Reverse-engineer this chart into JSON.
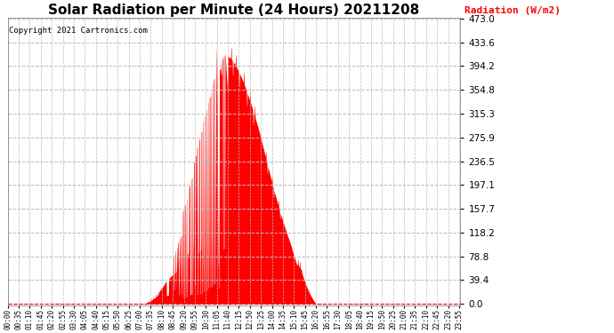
{
  "title": "Solar Radiation per Minute (24 Hours) 20211208",
  "copyright_text": "Copyright 2021 Cartronics.com",
  "ylabel": "Radiation (W/m2)",
  "ylabel_color": "#ff0000",
  "background_color": "#ffffff",
  "plot_bg_color": "#ffffff",
  "fill_color": "#ff0000",
  "dashed_line_color": "#ff0000",
  "grid_color": "#bbbbbb",
  "ymax": 473.0,
  "yticks": [
    0.0,
    39.4,
    78.8,
    118.2,
    157.7,
    197.1,
    236.5,
    275.9,
    315.3,
    354.8,
    394.2,
    433.6,
    473.0
  ],
  "title_fontsize": 11,
  "copyright_fontsize": 6.5,
  "ylabel_fontsize": 8,
  "tick_interval_minutes": 35
}
